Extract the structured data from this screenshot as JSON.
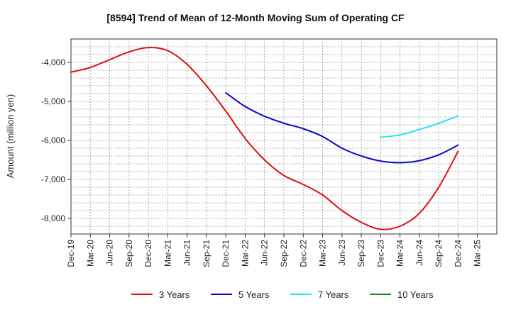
{
  "chart_data": {
    "type": "line",
    "title": "[8594]  Trend of Mean of 12-Month Moving Sum of Operating CF",
    "xlabel": "",
    "ylabel": "Amount (million yen)",
    "ylim": [
      -8400,
      -3400
    ],
    "yticks": [
      -4000,
      -5000,
      -6000,
      -7000,
      -8000
    ],
    "ytick_labels": [
      "-4,000",
      "-5,000",
      "-6,000",
      "-7,000",
      "-8,000"
    ],
    "categories": [
      "Dec-19",
      "Mar-20",
      "Jun-20",
      "Sep-20",
      "Dec-20",
      "Mar-21",
      "Jun-21",
      "Sep-21",
      "Dec-21",
      "Mar-22",
      "Jun-22",
      "Sep-22",
      "Dec-22",
      "Mar-23",
      "Jun-23",
      "Sep-23",
      "Dec-23",
      "Mar-24",
      "Jun-24",
      "Sep-24",
      "Dec-24",
      "Mar-25"
    ],
    "grid": true,
    "legend_position": "bottom",
    "series": [
      {
        "name": "3 Years",
        "color": "#dd1111",
        "values": [
          -4250,
          -4130,
          -3930,
          -3730,
          -3620,
          -3700,
          -4050,
          -4600,
          -5250,
          -5950,
          -6500,
          -6900,
          -7130,
          -7400,
          -7800,
          -8100,
          -8280,
          -8200,
          -7870,
          -7200,
          -6280,
          null
        ]
      },
      {
        "name": "5 Years",
        "color": "#0a0ac8",
        "values": [
          null,
          null,
          null,
          null,
          null,
          null,
          null,
          null,
          -4780,
          -5130,
          -5380,
          -5560,
          -5700,
          -5900,
          -6200,
          -6400,
          -6530,
          -6570,
          -6520,
          -6370,
          -6120,
          null
        ]
      },
      {
        "name": "7 Years",
        "color": "#22e5f0",
        "values": [
          null,
          null,
          null,
          null,
          null,
          null,
          null,
          null,
          null,
          null,
          null,
          null,
          null,
          null,
          null,
          null,
          -5920,
          -5860,
          -5720,
          -5560,
          -5370,
          null
        ]
      },
      {
        "name": "10 Years",
        "color": "#1a8a1a",
        "values": [
          null,
          null,
          null,
          null,
          null,
          null,
          null,
          null,
          null,
          null,
          null,
          null,
          null,
          null,
          null,
          null,
          null,
          null,
          null,
          null,
          null,
          null
        ]
      }
    ]
  }
}
